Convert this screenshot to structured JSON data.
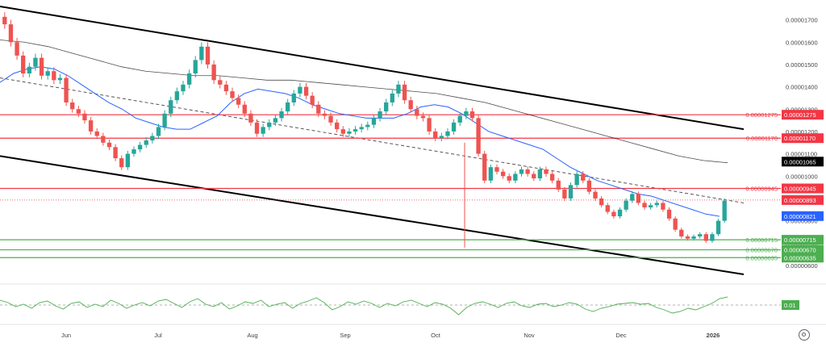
{
  "colors": {
    "up": "#26a69a",
    "down": "#ef5350",
    "resistance": "#f23645",
    "support": "#4caf50",
    "ma_fast": "#2962ff",
    "ma_slow": "#000000",
    "channel": "#000000",
    "oscillator": "#4caf50",
    "current_price_bg": "#f23645",
    "ma_fast_bg": "#2962ff",
    "ma_slow_bg": "#000000"
  },
  "chart_data": {
    "type": "candlestick",
    "x_tick_labels": [
      "Jun",
      "Jul",
      "Aug",
      "Sep",
      "Oct",
      "Nov",
      "Dec",
      "2026"
    ],
    "y_tick_labels": [
      "0.00001700",
      "0.00001600",
      "0.00001500",
      "0.00001400",
      "0.00001300",
      "0.00001200",
      "0.00001100",
      "0.00001000",
      "0.00000900",
      "0.00000800",
      "0.00000700",
      "0.00000600"
    ],
    "ylim": [
      5.6e-06,
      1.76e-05
    ],
    "horizontal_levels": [
      {
        "label": "0.00001275",
        "value": 1.275e-05,
        "kind": "resistance"
      },
      {
        "label": "0.00001170",
        "value": 1.17e-05,
        "kind": "resistance"
      },
      {
        "label": "0.00000945",
        "value": 9.45e-06,
        "kind": "resistance"
      },
      {
        "label": "0.00000715",
        "value": 7.15e-06,
        "kind": "support"
      },
      {
        "label": "0.00000670",
        "value": 6.7e-06,
        "kind": "support"
      },
      {
        "label": "0.00000635",
        "value": 6.35e-06,
        "kind": "support"
      }
    ],
    "price_badges": [
      {
        "label": "0.00001065",
        "value": 1.065e-05,
        "kind": "ma_slow"
      },
      {
        "label": "0.00000893",
        "value": 8.93e-06,
        "kind": "current"
      },
      {
        "label": "0.00000821",
        "value": 8.21e-06,
        "kind": "ma_fast"
      }
    ],
    "channel_upper": [
      1.76e-05,
      1.21e-05
    ],
    "channel_lower": [
      1.09e-05,
      5.6e-06
    ],
    "midline": [
      1.44e-05,
      8.8e-06
    ],
    "close_series": [
      1.68e-05,
      1.6e-05,
      1.54e-05,
      1.46e-05,
      1.49e-05,
      1.53e-05,
      1.45e-05,
      1.47e-05,
      1.43e-05,
      1.44e-05,
      1.33e-05,
      1.3e-05,
      1.28e-05,
      1.25e-05,
      1.2e-05,
      1.18e-05,
      1.15e-05,
      1.13e-05,
      1.08e-05,
      1.04e-05,
      1.1e-05,
      1.12e-05,
      1.14e-05,
      1.16e-05,
      1.18e-05,
      1.22e-05,
      1.28e-05,
      1.34e-05,
      1.38e-05,
      1.41e-05,
      1.46e-05,
      1.52e-05,
      1.58e-05,
      1.5e-05,
      1.43e-05,
      1.41e-05,
      1.38e-05,
      1.35e-05,
      1.32e-05,
      1.28e-05,
      1.24e-05,
      1.19e-05,
      1.22e-05,
      1.24e-05,
      1.26e-05,
      1.29e-05,
      1.33e-05,
      1.37e-05,
      1.4e-05,
      1.36e-05,
      1.32e-05,
      1.28e-05,
      1.27e-05,
      1.24e-05,
      1.21e-05,
      1.19e-05,
      1.2e-05,
      1.21e-05,
      1.22e-05,
      1.23e-05,
      1.26e-05,
      1.29e-05,
      1.33e-05,
      1.37e-05,
      1.41e-05,
      1.34e-05,
      1.3e-05,
      1.27e-05,
      1.26e-05,
      1.2e-05,
      1.17e-05,
      1.18e-05,
      1.2e-05,
      1.24e-05,
      1.27e-05,
      1.29e-05,
      1.26e-05,
      1.1e-05,
      9.8e-06,
      1.04e-05,
      1.02e-05,
      1e-05,
      9.8e-06,
      1.01e-05,
      1.03e-05,
      1.01e-05,
      9.9e-06,
      1.03e-05,
      1.01e-05,
      9.8e-06,
      9.4e-06,
      9e-06,
      9.6e-06,
      1.01e-05,
      9.8e-06,
      9.3e-06,
      9e-06,
      8.7e-06,
      8.4e-06,
      8.2e-06,
      8.5e-06,
      8.9e-06,
      9.2e-06,
      8.8e-06,
      8.6e-06,
      8.7e-06,
      8.8e-06,
      8.5e-06,
      8.1e-06,
      7.6e-06,
      7.3e-06,
      7.2e-06,
      7.3e-06,
      7.4e-06,
      7.1e-06,
      7.4e-06,
      8e-06,
      8.9e-06
    ],
    "fast_ma": [
      1.42e-05,
      1.46e-05,
      1.48e-05,
      1.49e-05,
      1.48e-05,
      1.45e-05,
      1.41e-05,
      1.37e-05,
      1.33e-05,
      1.3e-05,
      1.26e-05,
      1.24e-05,
      1.22e-05,
      1.21e-05,
      1.21e-05,
      1.24e-05,
      1.27e-05,
      1.33e-05,
      1.37e-05,
      1.39e-05,
      1.38e-05,
      1.37e-05,
      1.35e-05,
      1.32e-05,
      1.3e-05,
      1.28e-05,
      1.27e-05,
      1.26e-05,
      1.26e-05,
      1.26e-05,
      1.28e-05,
      1.31e-05,
      1.32e-05,
      1.31e-05,
      1.28e-05,
      1.24e-05,
      1.2e-05,
      1.18e-05,
      1.16e-05,
      1.14e-05,
      1.12e-05,
      1.08e-05,
      1.04e-05,
      1.01e-05,
      9.8e-06,
      9.6e-06,
      9.4e-06,
      9.2e-06,
      9.1e-06,
      8.9e-06,
      8.7e-06,
      8.5e-06,
      8.3e-06,
      8.2e-06
    ],
    "slow_ma": [
      1.61e-05,
      1.6e-05,
      1.58e-05,
      1.55e-05,
      1.52e-05,
      1.49e-05,
      1.47e-05,
      1.46e-05,
      1.45e-05,
      1.45e-05,
      1.44e-05,
      1.43e-05,
      1.43e-05,
      1.42e-05,
      1.41e-05,
      1.4e-05,
      1.39e-05,
      1.38e-05,
      1.37e-05,
      1.35e-05,
      1.33e-05,
      1.3e-05,
      1.27e-05,
      1.24e-05,
      1.21e-05,
      1.18e-05,
      1.15e-05,
      1.12e-05,
      1.09e-05,
      1.07e-05,
      1.06e-05
    ],
    "oscillator_label": "0.01",
    "oscillator_values": [
      0.6,
      0.3,
      -0.2,
      0.1,
      -0.4,
      0.3,
      0.5,
      -0.1,
      -0.5,
      0.2,
      0.4,
      -0.3,
      0.1,
      -0.2,
      0.6,
      0.2,
      -0.4,
      0.0,
      0.3,
      -0.1,
      0.5,
      0.7,
      0.2,
      -0.3,
      0.4,
      0.8,
      0.1,
      -0.2,
      0.3,
      -0.5,
      -0.1,
      0.4,
      0.2,
      0.6,
      -0.2,
      0.1,
      0.3,
      -0.4,
      0.2,
      0.5,
      0.9,
      0.3,
      -0.6,
      -0.2,
      0.4,
      0.1,
      0.5,
      0.2,
      -0.3,
      0.2,
      -0.1,
      0.4,
      0.6,
      0.2,
      -0.2,
      0.3,
      0.1,
      -0.4,
      -1.2,
      -0.3,
      0.2,
      0.4,
      0.1,
      -0.3,
      0.2,
      0.4,
      -0.1,
      -0.3,
      0.1,
      0.2,
      -0.2,
      0.0,
      0.3,
      0.1,
      -0.5,
      -0.8,
      -0.4,
      -0.2,
      0.1,
      0.2,
      0.3,
      0.1,
      0.2,
      -0.3,
      -0.6,
      -1.0,
      -0.8,
      -0.4,
      -0.6,
      -0.2,
      0.2,
      0.8,
      1.0
    ]
  },
  "toolbar": {
    "settings_icon": "gear-icon"
  }
}
